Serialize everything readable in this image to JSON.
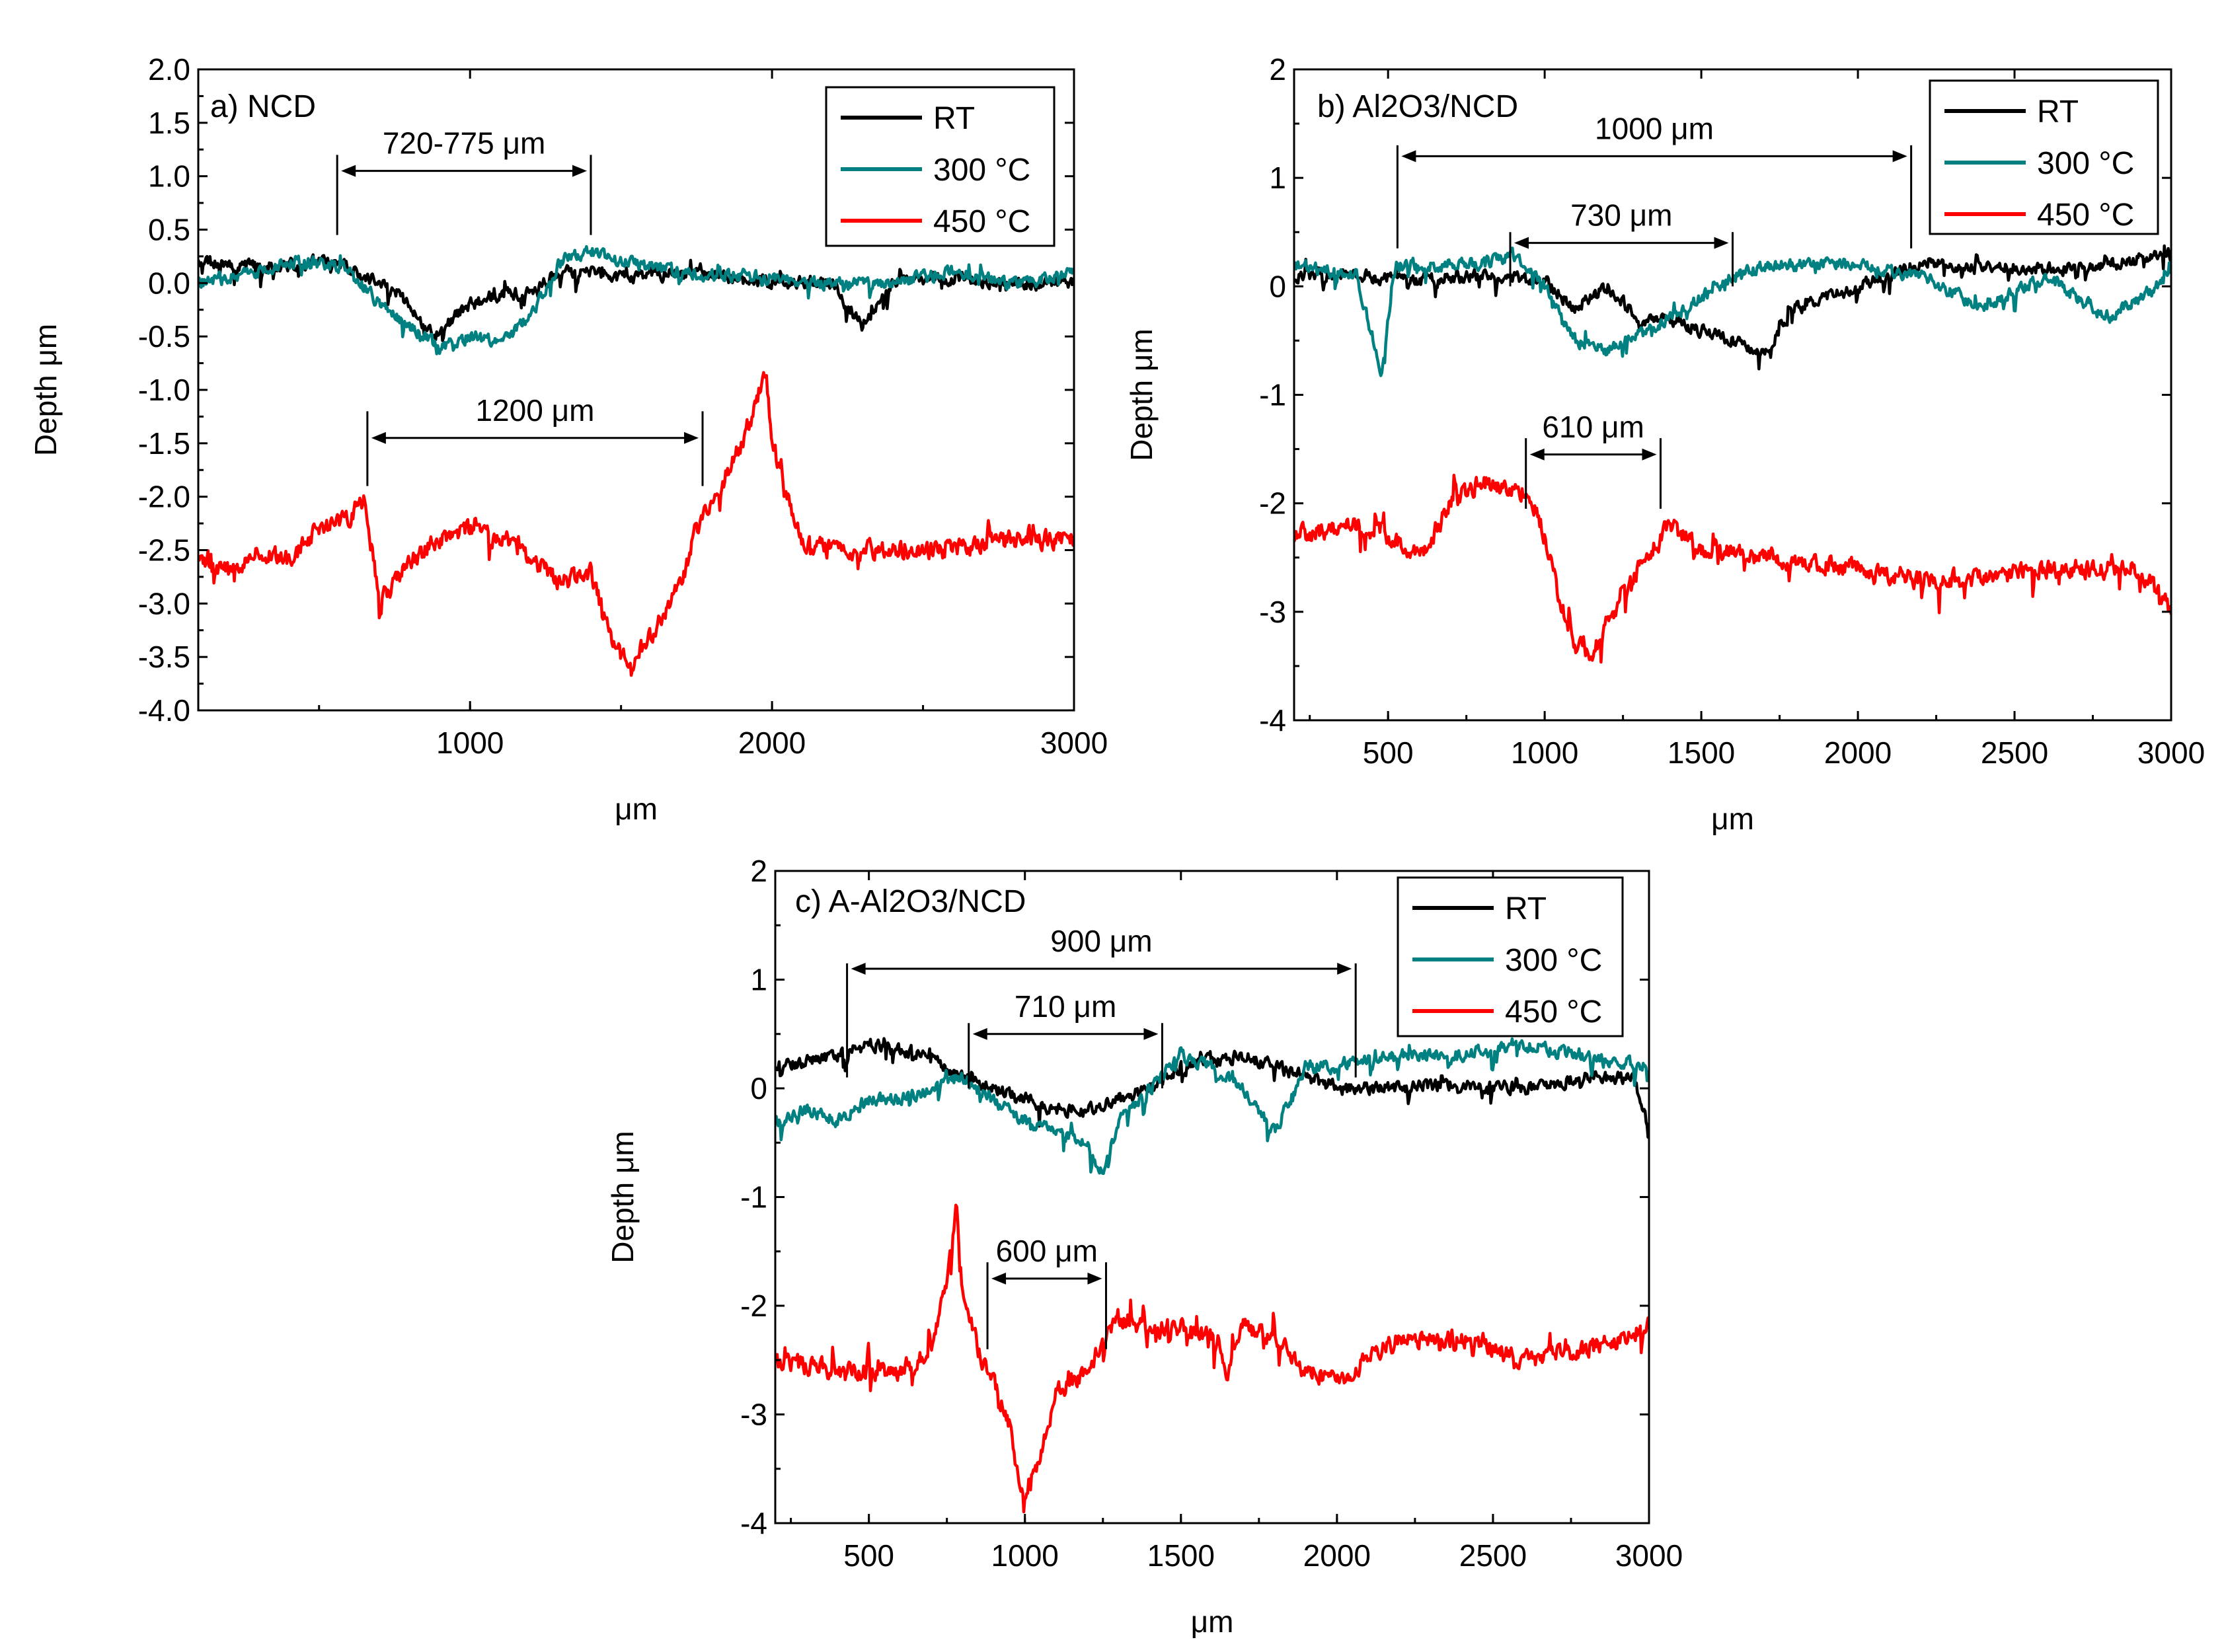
{
  "chart_data": [
    {
      "panel": "a",
      "type": "line",
      "title": "a)  NCD",
      "xlabel": "μm",
      "ylabel": "Depth μm",
      "xlim": [
        100,
        3000
      ],
      "ylim": [
        -4.0,
        2.0
      ],
      "xticks": [
        1000,
        2000,
        3000
      ],
      "xtick_labels": [
        "1000",
        "2000",
        "3000"
      ],
      "yticks": [
        2.0,
        1.5,
        1.0,
        0.5,
        0.0,
        -0.5,
        -1.0,
        -1.5,
        -2.0,
        -2.5,
        -3.0,
        -3.5,
        -4.0
      ],
      "ytick_labels": [
        "2.0",
        "1.5",
        "1.0",
        "0.5",
        "0.0",
        "-0.5",
        "-1.0",
        "-1.5",
        "-2.0",
        "-2.5",
        "-3.0",
        "-3.5",
        "-4.0"
      ],
      "legend": [
        "RT",
        "300 °C",
        "450 °C"
      ],
      "series": [
        {
          "name": "RT",
          "color": "#000000",
          "x": [
            100,
            300,
            500,
            600,
            700,
            800,
            850,
            900,
            950,
            1000,
            1100,
            1200,
            1300,
            1400,
            1500,
            1700,
            2000,
            2200,
            2300,
            2400,
            2600,
            2800,
            3000
          ],
          "y": [
            0.2,
            0.15,
            0.2,
            0.15,
            0.0,
            -0.2,
            -0.4,
            -0.5,
            -0.3,
            -0.2,
            -0.1,
            -0.1,
            0.1,
            0.1,
            0.05,
            0.1,
            0.0,
            0.0,
            -0.4,
            0.0,
            0.05,
            0.0,
            0.0
          ]
        },
        {
          "name": "300 °C",
          "color": "#008080",
          "x": [
            100,
            300,
            400,
            500,
            600,
            700,
            800,
            900,
            950,
            1000,
            1100,
            1200,
            1300,
            1400,
            1500,
            1700,
            2000,
            2200,
            2400,
            2600,
            2800,
            3000
          ],
          "y": [
            0.0,
            0.1,
            0.2,
            0.2,
            0.1,
            -0.2,
            -0.4,
            -0.6,
            -0.55,
            -0.5,
            -0.55,
            -0.3,
            0.2,
            0.3,
            0.2,
            0.1,
            0.05,
            0.0,
            0.0,
            0.1,
            0.0,
            0.1
          ]
        },
        {
          "name": "450 °C",
          "color": "#ff0000",
          "x": [
            100,
            200,
            300,
            400,
            500,
            600,
            650,
            700,
            800,
            900,
            1000,
            1100,
            1200,
            1300,
            1400,
            1450,
            1500,
            1550,
            1600,
            1700,
            1750,
            1800,
            1850,
            1900,
            1950,
            1980,
            2000,
            2050,
            2100,
            2200,
            2400,
            2600,
            2800,
            3000
          ],
          "y": [
            -2.6,
            -2.7,
            -2.5,
            -2.6,
            -2.3,
            -2.2,
            -2.0,
            -3.0,
            -2.6,
            -2.4,
            -2.3,
            -2.4,
            -2.6,
            -2.8,
            -2.7,
            -3.2,
            -3.5,
            -3.5,
            -3.3,
            -2.8,
            -2.3,
            -2.0,
            -1.8,
            -1.5,
            -1.1,
            -0.8,
            -1.5,
            -2.0,
            -2.4,
            -2.5,
            -2.5,
            -2.5,
            -2.4,
            -2.4
          ]
        }
      ],
      "annotations": [
        {
          "text": "720-775 μm",
          "x1": 560,
          "x2": 1400,
          "y": 1.05,
          "tick_top": 1.2,
          "tick_bottom": 0.45
        },
        {
          "text": "1200 μm",
          "x1": 660,
          "x2": 1770,
          "y": -1.45,
          "tick_top": -1.2,
          "tick_bottom": -1.9
        }
      ]
    },
    {
      "panel": "b",
      "type": "line",
      "title": "b)  Al2O3/NCD",
      "xlabel": "μm",
      "ylabel": "Depth μm",
      "xlim": [
        200,
        3000
      ],
      "ylim": [
        -4,
        2
      ],
      "xticks": [
        500,
        1000,
        1500,
        2000,
        2500,
        3000
      ],
      "xtick_labels": [
        "500",
        "1000",
        "1500",
        "2000",
        "2500",
        "3000"
      ],
      "yticks": [
        2,
        1,
        0,
        -1,
        -2,
        -3,
        -4
      ],
      "ytick_labels": [
        "2",
        "1",
        "0",
        "-1",
        "-2",
        "-3",
        "-4"
      ],
      "legend": [
        "RT",
        "300 °C",
        "450 °C"
      ],
      "series": [
        {
          "name": "RT",
          "color": "#000000",
          "x": [
            200,
            400,
            600,
            800,
            1000,
            1100,
            1200,
            1300,
            1400,
            1500,
            1600,
            1700,
            1800,
            2000,
            2200,
            2400,
            2600,
            2800,
            3000
          ],
          "y": [
            0.1,
            0.1,
            0.05,
            0.1,
            0.05,
            -0.2,
            0.0,
            -0.3,
            -0.3,
            -0.4,
            -0.5,
            -0.6,
            -0.2,
            0.0,
            0.2,
            0.2,
            0.15,
            0.2,
            0.3
          ]
        },
        {
          "name": "300 °C",
          "color": "#008080",
          "x": [
            200,
            400,
            480,
            520,
            600,
            800,
            900,
            1000,
            1100,
            1200,
            1300,
            1400,
            1500,
            1600,
            1700,
            2000,
            2200,
            2400,
            2600,
            2800,
            3000
          ],
          "y": [
            0.2,
            0.1,
            -0.8,
            0.2,
            0.2,
            0.2,
            0.3,
            0.0,
            -0.5,
            -0.6,
            -0.4,
            -0.3,
            -0.1,
            0.1,
            0.2,
            0.2,
            0.1,
            -0.2,
            0.1,
            -0.3,
            0.1
          ]
        },
        {
          "name": "450 °C",
          "color": "#ff0000",
          "x": [
            200,
            400,
            500,
            600,
            700,
            800,
            900,
            950,
            1000,
            1050,
            1100,
            1150,
            1200,
            1300,
            1400,
            1500,
            1700,
            2000,
            2200,
            2400,
            2600,
            2800,
            2900,
            3000
          ],
          "y": [
            -2.3,
            -2.2,
            -2.3,
            -2.5,
            -2.0,
            -1.8,
            -1.9,
            -1.9,
            -2.3,
            -2.9,
            -3.3,
            -3.4,
            -3.1,
            -2.6,
            -2.2,
            -2.4,
            -2.5,
            -2.6,
            -2.7,
            -2.7,
            -2.6,
            -2.6,
            -2.6,
            -3.0
          ]
        }
      ],
      "annotations": [
        {
          "text": "1000 μm",
          "x1": 530,
          "x2": 2170,
          "y": 1.2,
          "tick_top": 1.3,
          "tick_bottom": 0.35
        },
        {
          "text": "730 μm",
          "x1": 890,
          "x2": 1600,
          "y": 0.4,
          "tick_top": 0.5,
          "tick_bottom": 0.0
        },
        {
          "text": "610 μm",
          "x1": 940,
          "x2": 1370,
          "y": -1.55,
          "tick_top": -1.4,
          "tick_bottom": -2.05
        }
      ]
    },
    {
      "panel": "c",
      "type": "line",
      "title": "c)  A-Al2O3/NCD",
      "xlabel": "μm",
      "ylabel": "Depth μm",
      "xlim": [
        200,
        3000
      ],
      "ylim": [
        -4,
        2
      ],
      "xticks": [
        500,
        1000,
        1500,
        2000,
        2500,
        3000
      ],
      "xtick_labels": [
        "500",
        "1000",
        "1500",
        "2000",
        "2500",
        "3000"
      ],
      "yticks": [
        2,
        1,
        0,
        -1,
        -2,
        -3,
        -4
      ],
      "ytick_labels": [
        "2",
        "1",
        "0",
        "-1",
        "-2",
        "-3",
        "-4"
      ],
      "legend": [
        "RT",
        "300 °C",
        "450 °C"
      ],
      "series": [
        {
          "name": "RT",
          "color": "#000000",
          "x": [
            200,
            400,
            500,
            700,
            800,
            900,
            1000,
            1100,
            1200,
            1300,
            1400,
            1500,
            1700,
            1900,
            2000,
            2200,
            2400,
            2600,
            2800,
            2950,
            3000
          ],
          "y": [
            0.2,
            0.3,
            0.4,
            0.3,
            0.1,
            0.0,
            -0.1,
            -0.2,
            -0.2,
            -0.1,
            0.0,
            0.2,
            0.3,
            0.1,
            0.0,
            0.0,
            0.05,
            0.0,
            0.1,
            0.1,
            -0.4
          ]
        },
        {
          "name": "300 °C",
          "color": "#008080",
          "x": [
            200,
            300,
            400,
            500,
            600,
            700,
            800,
            900,
            1000,
            1100,
            1200,
            1250,
            1300,
            1400,
            1500,
            1600,
            1700,
            1800,
            1900,
            2000,
            2200,
            2400,
            2600,
            2800,
            3000
          ],
          "y": [
            -0.3,
            -0.2,
            -0.3,
            -0.1,
            -0.1,
            0.0,
            0.1,
            -0.1,
            -0.3,
            -0.4,
            -0.5,
            -0.8,
            -0.3,
            0.0,
            0.3,
            0.2,
            0.0,
            -0.4,
            0.2,
            0.2,
            0.3,
            0.3,
            0.4,
            0.3,
            0.2
          ]
        },
        {
          "name": "450 °C",
          "color": "#ff0000",
          "x": [
            200,
            400,
            600,
            700,
            750,
            780,
            800,
            850,
            900,
            950,
            980,
            1000,
            1050,
            1100,
            1200,
            1300,
            1400,
            1500,
            1600,
            1650,
            1700,
            1800,
            1900,
            2000,
            2200,
            2400,
            2600,
            2800,
            3000
          ],
          "y": [
            -2.5,
            -2.6,
            -2.6,
            -2.4,
            -1.8,
            -1.1,
            -1.8,
            -2.4,
            -2.7,
            -3.1,
            -3.6,
            -3.7,
            -3.4,
            -2.8,
            -2.6,
            -2.1,
            -2.2,
            -2.2,
            -2.3,
            -2.6,
            -2.2,
            -2.3,
            -2.6,
            -2.7,
            -2.3,
            -2.3,
            -2.5,
            -2.4,
            -2.2
          ]
        }
      ],
      "annotations": [
        {
          "text": "900 μm",
          "x1": 430,
          "x2": 2060,
          "y": 1.1,
          "tick_top": 1.15,
          "tick_bottom": 0.1
        },
        {
          "text": "710 μm",
          "x1": 820,
          "x2": 1440,
          "y": 0.5,
          "tick_top": 0.6,
          "tick_bottom": 0.0
        },
        {
          "text": "600 μm",
          "x1": 880,
          "x2": 1260,
          "y": -1.75,
          "tick_top": -1.6,
          "tick_bottom": -2.4
        }
      ]
    }
  ]
}
